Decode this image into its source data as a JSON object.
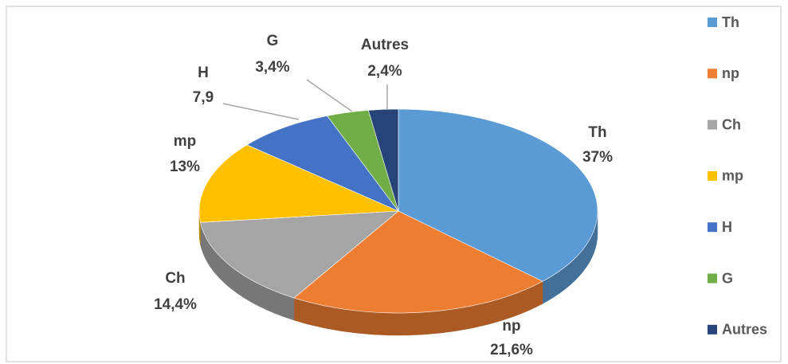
{
  "chart_data": {
    "type": "pie",
    "categories": [
      "Th",
      "np",
      "Ch",
      "mp",
      "H",
      "G",
      "Autres"
    ],
    "values": [
      37,
      21.6,
      14.4,
      13,
      7.9,
      3.4,
      2.4
    ],
    "value_labels": [
      "37%",
      "21,6%",
      "14,4%",
      "13%",
      "7,9",
      "3,4%",
      "2,4%"
    ],
    "colors": [
      "#5b9bd5",
      "#ed7d31",
      "#a5a5a5",
      "#ffc000",
      "#4472c4",
      "#70ad47",
      "#264478"
    ],
    "legend": "right"
  }
}
